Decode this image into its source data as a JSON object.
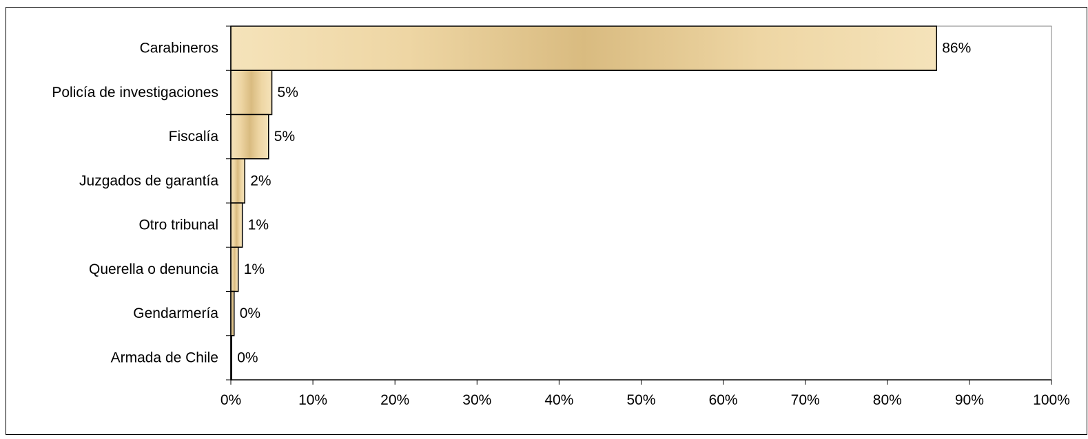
{
  "chart_data": {
    "type": "bar",
    "orientation": "horizontal",
    "categories": [
      "Carabineros",
      "Policía de investigaciones",
      "Fiscalía",
      "Juzgados de garantía",
      "Otro tribunal",
      "Querella o denuncia",
      "Gendarmería",
      "Armada de Chile"
    ],
    "values": [
      86,
      5,
      4.6,
      1.7,
      1.4,
      0.9,
      0.4,
      0.1
    ],
    "data_labels": [
      "86%",
      "5%",
      "5%",
      "2%",
      "1%",
      "1%",
      "0%",
      "0%"
    ],
    "x_ticks": [
      "0%",
      "10%",
      "20%",
      "30%",
      "40%",
      "50%",
      "60%",
      "70%",
      "80%",
      "90%",
      "100%"
    ],
    "xlim": [
      0,
      100
    ],
    "unit": "%",
    "grid": false,
    "legend": "none",
    "colors": {
      "bar_fill": "#eed6a4",
      "bar_fill_light": "#f5e3ba",
      "bar_fill_dark": "#d9bb80",
      "bar_stroke": "#000000",
      "axis": "#000000",
      "plot_border": "#808080",
      "outer_border": "#000000"
    }
  }
}
